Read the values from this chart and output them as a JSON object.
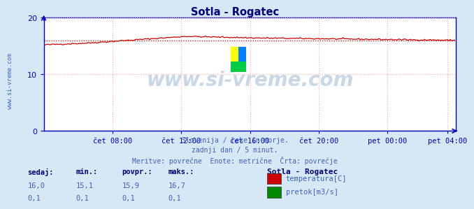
{
  "title": "Sotla - Rogatec",
  "title_color": "#000080",
  "bg_color": "#d6e8f5",
  "plot_bg_color": "#ffffff",
  "watermark_text": "www.si-vreme.com",
  "watermark_color": "#c8d8e8",
  "sidebar_text": "www.si-vreme.com",
  "sidebar_color": "#4060c0",
  "xlim_min": 0,
  "xlim_max": 288,
  "ylim_min": 0,
  "ylim_max": 20,
  "yticks": [
    0,
    10,
    20
  ],
  "xtick_labels": [
    "čet 08:00",
    "čet 12:00",
    "čet 16:00",
    "čet 20:00",
    "pet 00:00",
    "pet 04:00"
  ],
  "xtick_positions": [
    48,
    96,
    144,
    192,
    240,
    282
  ],
  "grid_color": "#ffaaaa",
  "axis_color": "#0000cc",
  "temp_color": "#cc0000",
  "flow_color": "#008800",
  "temp_min": 15.1,
  "temp_max": 16.7,
  "temp_avg": 15.9,
  "flow_val": 0.1,
  "footer_line1": "Slovenija / reke in morje.",
  "footer_line2": "zadnji dan / 5 minut.",
  "footer_line3": "Meritve: povrečne  Enote: metrične  Črta: povrečje",
  "footer_color": "#4060c0",
  "legend_title": "Sotla - Rogatec",
  "legend_title_color": "#000080",
  "legend_color": "#4060c0",
  "table_header_color": "#000080",
  "table_data_color": "#4060c0",
  "table_headers": [
    "sedaj:",
    "min.:",
    "povpr.:",
    "maks.:"
  ],
  "table_row1": [
    "16,0",
    "15,1",
    "15,9",
    "16,7"
  ],
  "table_row2": [
    "0,1",
    "0,1",
    "0,1",
    "0,1"
  ],
  "legend_items": [
    {
      "label": "temperatura[C]",
      "color": "#cc0000"
    },
    {
      "label": "pretok[m3/s]",
      "color": "#008800"
    }
  ],
  "icon_colors": [
    "#ffff00",
    "#00aaff",
    "#008800"
  ],
  "spine_color": "#0000cc",
  "tick_label_color": "#0000cc"
}
